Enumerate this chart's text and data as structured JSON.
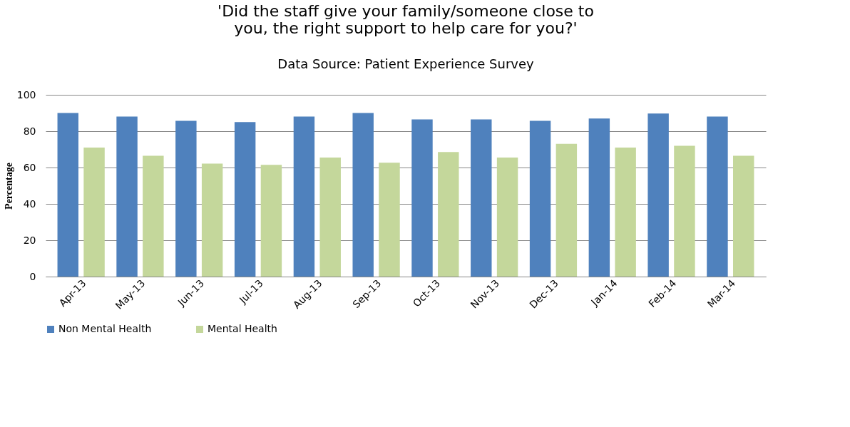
{
  "chart_data": {
    "type": "bar",
    "title": "'Did the staff give your family/someone close to you, the right support to help care for you?'",
    "subtitle": "Data Source: Patient Experience Survey",
    "ylabel": "Percentage",
    "categories": [
      "Apr-13",
      "May-13",
      "Jun-13",
      "Jul-13",
      "Aug-13",
      "Sep-13",
      "Oct-13",
      "Nov-13",
      "Dec-13",
      "Jan-14",
      "Feb-14",
      "Mar-14"
    ],
    "series": [
      {
        "name": "Non Mental Health",
        "color": "#4f81bd",
        "values": [
          90,
          88,
          85.7,
          85,
          88,
          90,
          86.5,
          86.5,
          85.7,
          87,
          89.7,
          88
        ]
      },
      {
        "name": "Mental Health",
        "color": "#c4d79b",
        "values": [
          71,
          66.5,
          62.2,
          61.5,
          65.5,
          62.6,
          68.5,
          65.5,
          73,
          71,
          72,
          66.5
        ]
      }
    ],
    "ylim": [
      0,
      100
    ],
    "yticks": [
      0,
      20,
      40,
      60,
      80,
      100
    ],
    "grid": "y",
    "legend": "bottom"
  }
}
